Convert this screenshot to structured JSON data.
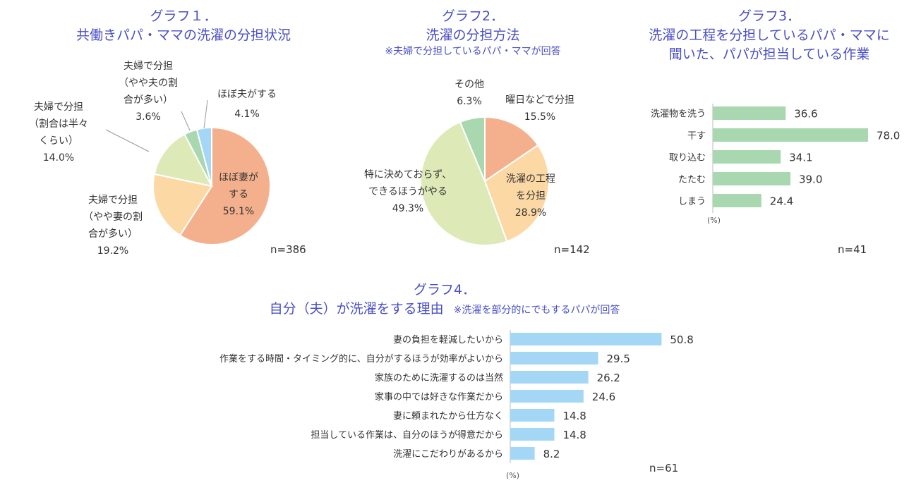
{
  "chart_data": [
    {
      "type": "pie",
      "title": "グラフ１．",
      "subtitle": "共働きパパ・ママの洗濯の分担状況",
      "n_label": "n=386",
      "slices": [
        {
          "label": "ほぼ妻がする",
          "label_lines": [
            "ほぼ妻が",
            "する"
          ],
          "value": 59.1,
          "value_text": "59.1%",
          "color": "#f4b08c"
        },
        {
          "label": "夫婦で分担（やや妻の割合が多い）",
          "label_lines": [
            "夫婦で分担",
            "（やや妻の割",
            "合が多い）"
          ],
          "value": 19.2,
          "value_text": "19.2%",
          "color": "#fcd8a4"
        },
        {
          "label": "夫婦で分担（割合は半々くらい）",
          "label_lines": [
            "夫婦で分担",
            "（割合は半々",
            "くらい）"
          ],
          "value": 14.0,
          "value_text": "14.0%",
          "color": "#dde9b6"
        },
        {
          "label": "夫婦で分担（やや夫の割合が多い）",
          "label_lines": [
            "夫婦で分担",
            "（やや夫の割",
            "合が多い）"
          ],
          "value": 3.6,
          "value_text": "3.6%",
          "color": "#a9d7b0"
        },
        {
          "label": "ほぼ夫がする",
          "label_lines": [
            "ほぼ夫がする"
          ],
          "value": 4.1,
          "value_text": "4.1%",
          "color": "#a3d7f5"
        }
      ]
    },
    {
      "type": "pie",
      "title": "グラフ2．",
      "subtitle": "洗濯の分担方法",
      "note": "※夫婦で分担しているパパ・ママが回答",
      "n_label": "n=142",
      "slices": [
        {
          "label": "曜日などで分担",
          "label_lines": [
            "曜日などで分担"
          ],
          "value": 15.5,
          "value_text": "15.5%",
          "color": "#f4b08c"
        },
        {
          "label": "洗濯の工程を分担",
          "label_lines": [
            "洗濯の工程",
            "を分担"
          ],
          "value": 28.9,
          "value_text": "28.9%",
          "color": "#fcd8a4"
        },
        {
          "label": "特に決めておらず、できるほうがやる",
          "label_lines": [
            "特に決めておらず、",
            "できるほうがやる"
          ],
          "value": 49.3,
          "value_text": "49.3%",
          "color": "#dde9b6"
        },
        {
          "label": "その他",
          "label_lines": [
            "その他"
          ],
          "value": 6.3,
          "value_text": "6.3%",
          "color": "#a9d7b0"
        }
      ]
    },
    {
      "type": "bar",
      "orientation": "horizontal",
      "title": "グラフ3．",
      "subtitle_lines": [
        "洗濯の工程を分担しているパパ・ママに",
        "聞いた、パパが担当している作業"
      ],
      "unit_label": "(%)",
      "n_label": "n=41",
      "color": "#a9d7b0",
      "xlim": [
        0,
        100
      ],
      "categories": [
        "洗濯物を洗う",
        "干す",
        "取り込む",
        "たたむ",
        "しまう"
      ],
      "values": [
        36.6,
        78.0,
        34.1,
        39.0,
        24.4
      ],
      "value_labels": [
        "36.6",
        "78.0",
        "34.1",
        "39.0",
        "24.4"
      ]
    },
    {
      "type": "bar",
      "orientation": "horizontal",
      "title": "グラフ4．",
      "subtitle": "自分（夫）が洗濯をする理由",
      "note": "※洗濯を部分的にでもするパパが回答",
      "unit_label": "(%)",
      "n_label": "n=61",
      "color": "#a3d7f5",
      "xlim": [
        0,
        100
      ],
      "categories": [
        "妻の負担を軽減したいから",
        "作業をする時間・タイミング的に、自分がするほうが効率がよいから",
        "家族のために洗濯するのは当然",
        "家事の中では好きな作業だから",
        "妻に頼まれたから仕方なく",
        "担当している作業は、自分のほうが得意だから",
        "洗濯にこだわりがあるから"
      ],
      "values": [
        50.8,
        29.5,
        26.2,
        24.6,
        14.8,
        14.8,
        8.2
      ],
      "value_labels": [
        "50.8",
        "29.5",
        "26.2",
        "24.6",
        "14.8",
        "14.8",
        "8.2"
      ]
    }
  ]
}
